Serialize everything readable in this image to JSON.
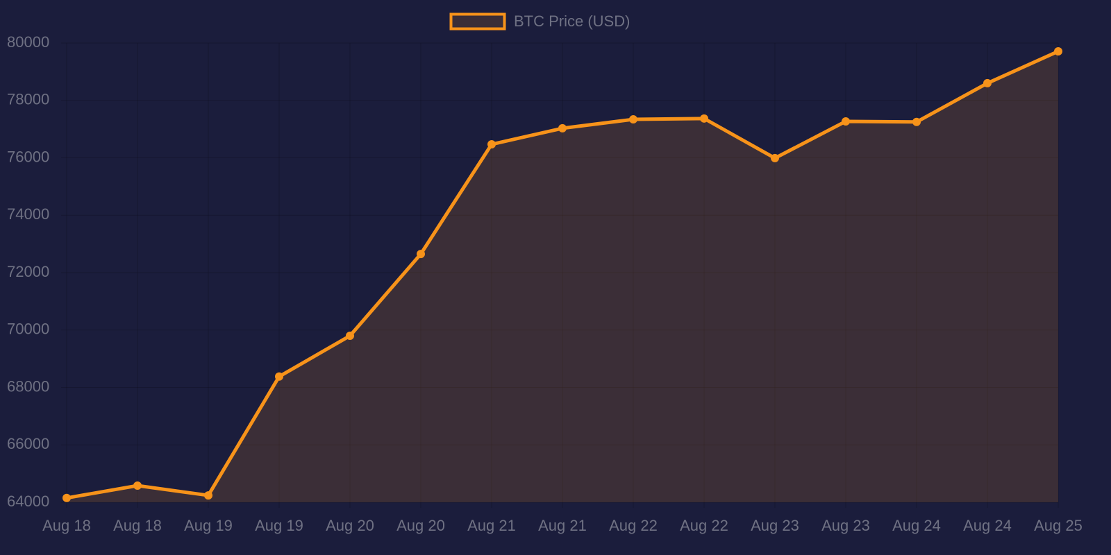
{
  "chart_data": {
    "type": "line",
    "categories": [
      "Aug 18",
      "Aug 18",
      "Aug 19",
      "Aug 19",
      "Aug 20",
      "Aug 20",
      "Aug 21",
      "Aug 21",
      "Aug 22",
      "Aug 22",
      "Aug 23",
      "Aug 23",
      "Aug 24",
      "Aug 24",
      "Aug 25"
    ],
    "series": [
      {
        "name": "BTC Price (USD)",
        "color": "#f7931a",
        "values": [
          64150,
          64580,
          64240,
          68380,
          69800,
          72650,
          76470,
          77030,
          77340,
          77370,
          75990,
          77270,
          77250,
          78600,
          79710
        ]
      }
    ],
    "ylim": [
      64000,
      80000
    ],
    "yticks": [
      64000,
      66000,
      68000,
      70000,
      72000,
      74000,
      76000,
      78000,
      80000
    ],
    "grid": true,
    "fill": true,
    "legend": "top"
  }
}
